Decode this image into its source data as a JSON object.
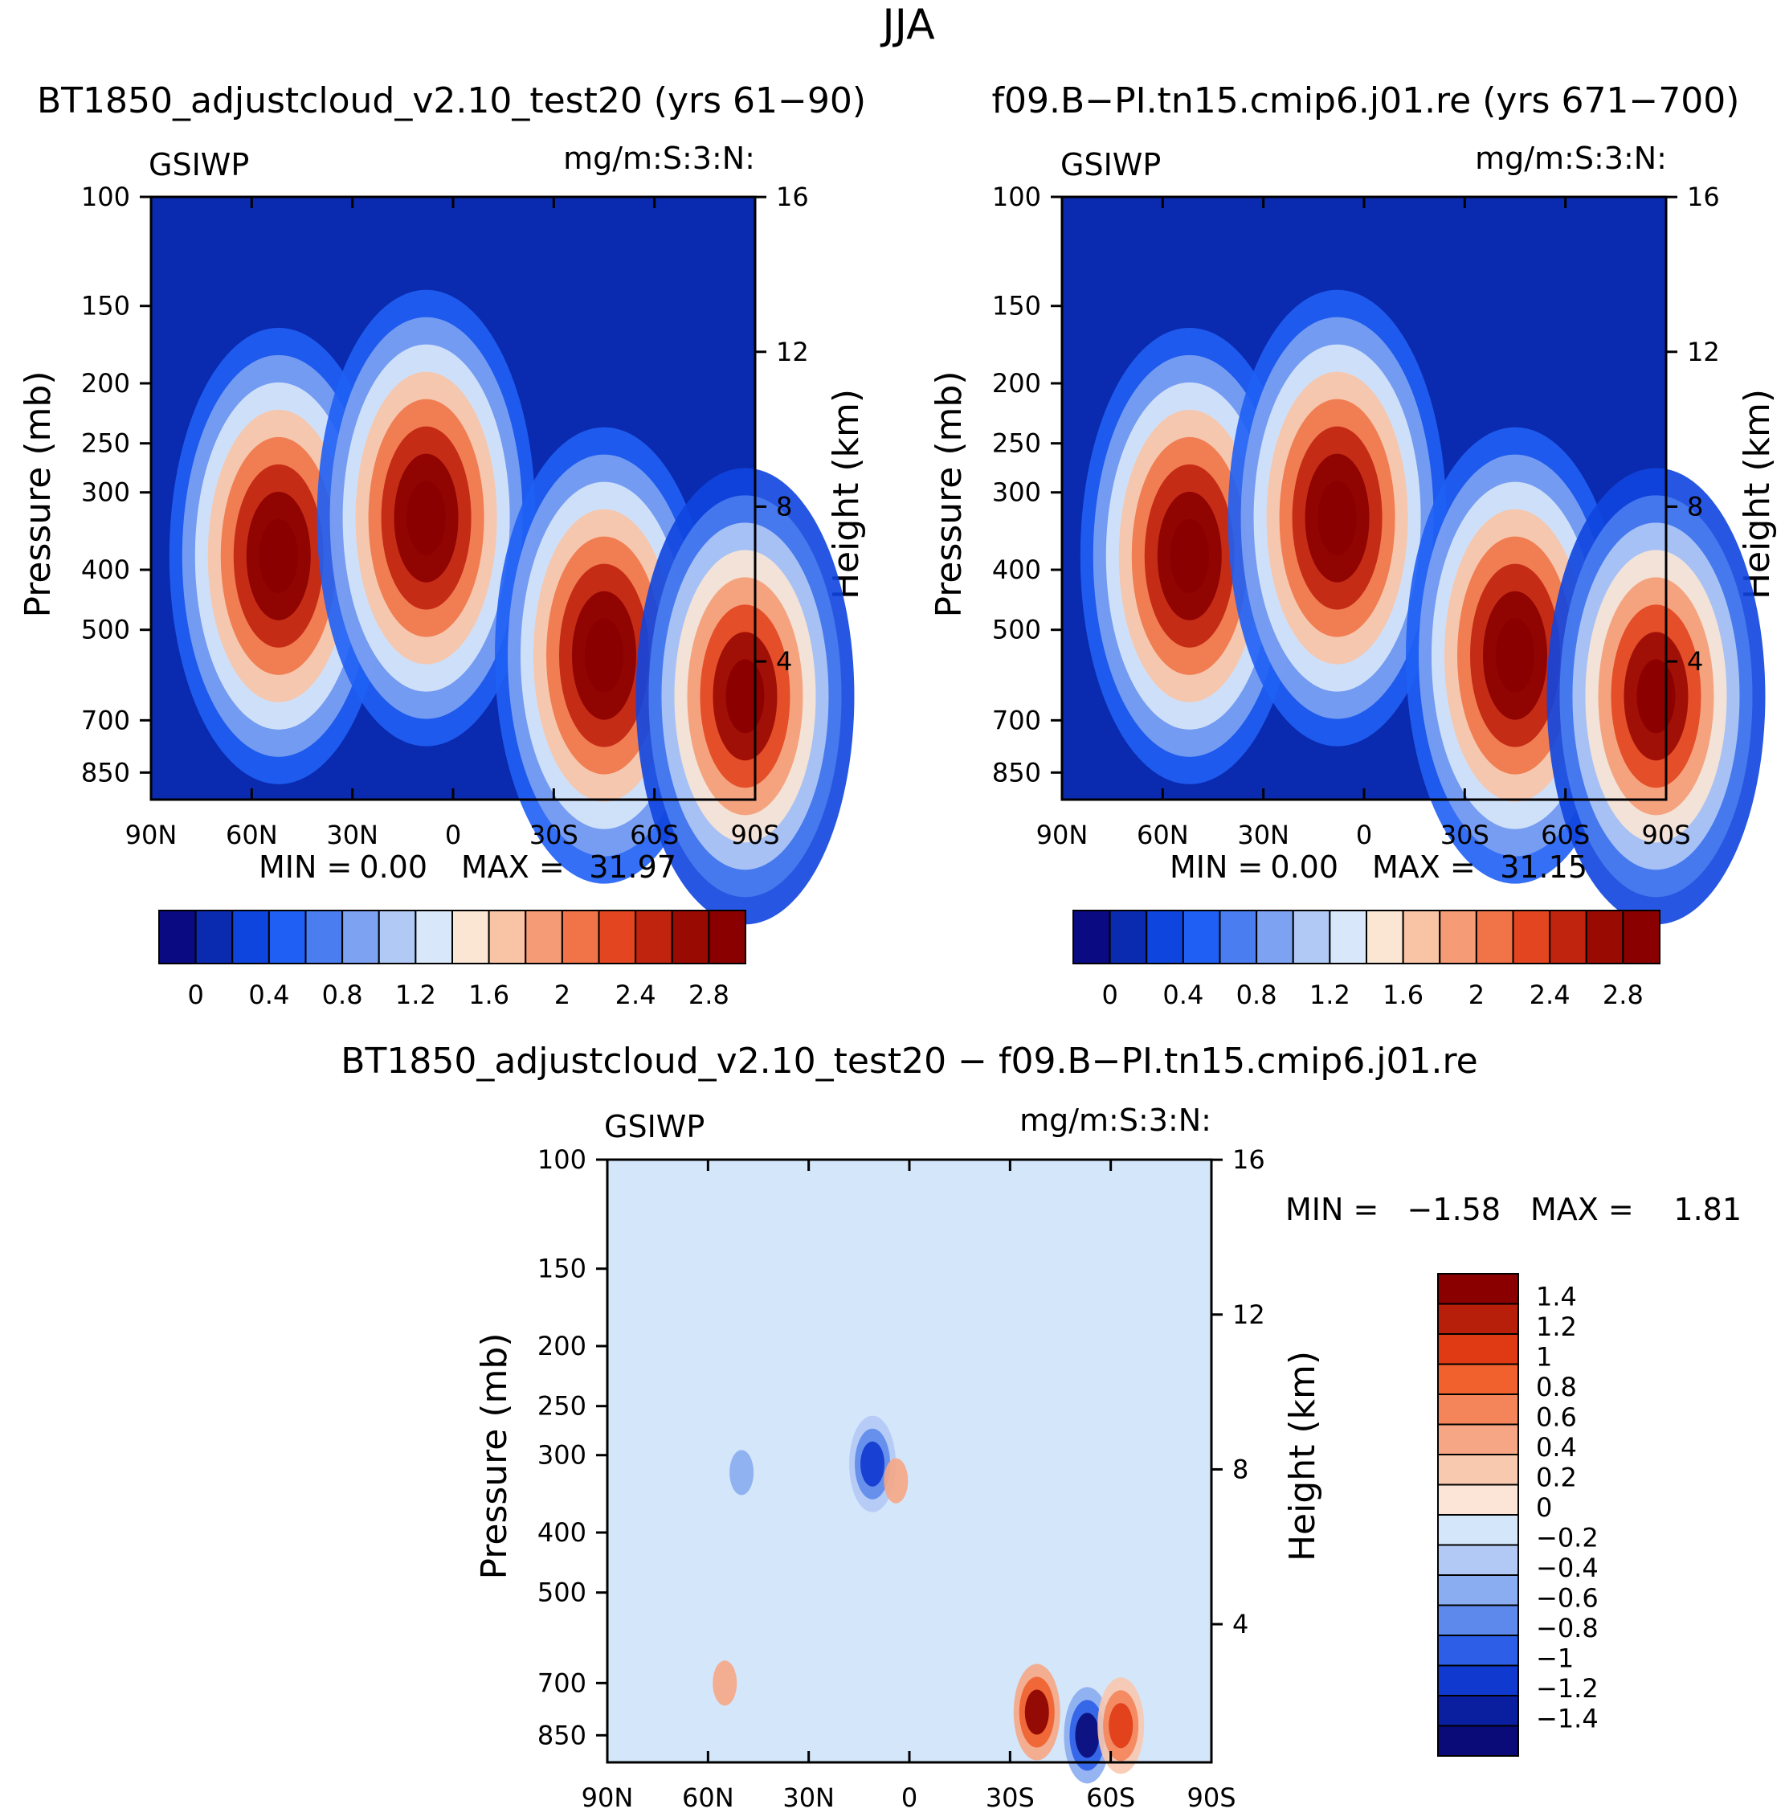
{
  "figure_title": "JJA",
  "chart_data": [
    {
      "type": "heatmap",
      "id": "left",
      "title": "BT1850_adjustcloud_v2.10_test20 (yrs 61−90)",
      "variable": "GSIWP",
      "units": "mg/m:S:3:N:",
      "ylabel": "Pressure (mb)",
      "ylabel_right": "Height (km)",
      "x_ticks": [
        "90N",
        "60N",
        "30N",
        "0",
        "30S",
        "60S",
        "90S"
      ],
      "y_ticks": [
        "100",
        "150",
        "200",
        "250",
        "300",
        "400",
        "500",
        "700",
        "850"
      ],
      "y_right_ticks": [
        "16",
        "12",
        "8",
        "4"
      ],
      "min_label": "MIN =",
      "min_value": "0.00",
      "max_label": "MAX =",
      "max_value": "31.97",
      "colorbar_ticks": [
        "0",
        "0.4",
        "0.8",
        "1.2",
        "1.6",
        "2",
        "2.4",
        "2.8"
      ],
      "features": [
        {
          "lat": 52,
          "p": 380,
          "value": 3.2
        },
        {
          "lat": 8,
          "p": 330,
          "value": 3.2
        },
        {
          "lat": -45,
          "p": 550,
          "value": 3.2
        },
        {
          "lat": -87,
          "p": 640,
          "value": 3.0
        }
      ]
    },
    {
      "type": "heatmap",
      "id": "right",
      "title": "f09.B−PI.tn15.cmip6.j01.re (yrs 671−700)",
      "variable": "GSIWP",
      "units": "mg/m:S:3:N:",
      "ylabel": "Pressure (mb)",
      "ylabel_right": "Height (km)",
      "x_ticks": [
        "90N",
        "60N",
        "30N",
        "0",
        "30S",
        "60S",
        "90S"
      ],
      "y_ticks": [
        "100",
        "150",
        "200",
        "250",
        "300",
        "400",
        "500",
        "700",
        "850"
      ],
      "y_right_ticks": [
        "16",
        "12",
        "8",
        "4"
      ],
      "min_label": "MIN =",
      "min_value": "0.00",
      "max_label": "MAX =",
      "max_value": "31.15",
      "colorbar_ticks": [
        "0",
        "0.4",
        "0.8",
        "1.2",
        "1.6",
        "2",
        "2.4",
        "2.8"
      ],
      "features": [
        {
          "lat": 52,
          "p": 380,
          "value": 3.2
        },
        {
          "lat": 8,
          "p": 330,
          "value": 3.2
        },
        {
          "lat": -45,
          "p": 550,
          "value": 3.2
        },
        {
          "lat": -87,
          "p": 640,
          "value": 3.0
        }
      ]
    },
    {
      "type": "heatmap",
      "id": "diff",
      "title": "BT1850_adjustcloud_v2.10_test20 − f09.B−PI.tn15.cmip6.j01.re",
      "variable": "GSIWP",
      "units": "mg/m:S:3:N:",
      "ylabel": "Pressure (mb)",
      "ylabel_right": "Height (km)",
      "x_ticks": [
        "90N",
        "60N",
        "30N",
        "0",
        "30S",
        "60S",
        "90S"
      ],
      "y_ticks": [
        "100",
        "150",
        "200",
        "250",
        "300",
        "400",
        "500",
        "700",
        "850"
      ],
      "y_right_ticks": [
        "16",
        "12",
        "8",
        "4"
      ],
      "min_label": "MIN =",
      "min_value": "−1.58",
      "max_label": "MAX =",
      "max_value": "1.81",
      "colorbar_ticks": [
        "1.4",
        "1.2",
        "1",
        "0.8",
        "0.6",
        "0.4",
        "0.2",
        "0",
        "−0.2",
        "−0.4",
        "−0.6",
        "−0.8",
        "−1",
        "−1.2",
        "−1.4"
      ],
      "features": [
        {
          "lat": -38,
          "p": 780,
          "value": 1.4
        },
        {
          "lat": -53,
          "p": 850,
          "value": -1.4
        },
        {
          "lat": -63,
          "p": 820,
          "value": 1.0
        },
        {
          "lat": 11,
          "p": 310,
          "value": -1.2
        },
        {
          "lat": 4,
          "p": 330,
          "value": 0.6
        },
        {
          "lat": 50,
          "p": 320,
          "value": -0.6
        },
        {
          "lat": 55,
          "p": 700,
          "value": 0.4
        }
      ]
    }
  ],
  "colors": {
    "seq": [
      "#0a0a82",
      "#0a2aaf",
      "#0f45df",
      "#1f5ff4",
      "#4a7df0",
      "#7ea2f2",
      "#b1c9f5",
      "#d8e8fa",
      "#fbe6d4",
      "#f9c4a6",
      "#f59c76",
      "#f17448",
      "#e2451f",
      "#c0240f",
      "#990a03",
      "#8a0000"
    ],
    "div": [
      "#8a0000",
      "#b71f0a",
      "#e03a14",
      "#f0612d",
      "#f4845a",
      "#f6a684",
      "#f8c8af",
      "#fce4d6",
      "#d4e6fa",
      "#b2c9f5",
      "#8aacf0",
      "#5e89ec",
      "#2c5ee8",
      "#0f39cf",
      "#0a1fa0",
      "#0a0a78"
    ],
    "background": "#0a2aaf",
    "diff_background": "#d4e6fa"
  }
}
